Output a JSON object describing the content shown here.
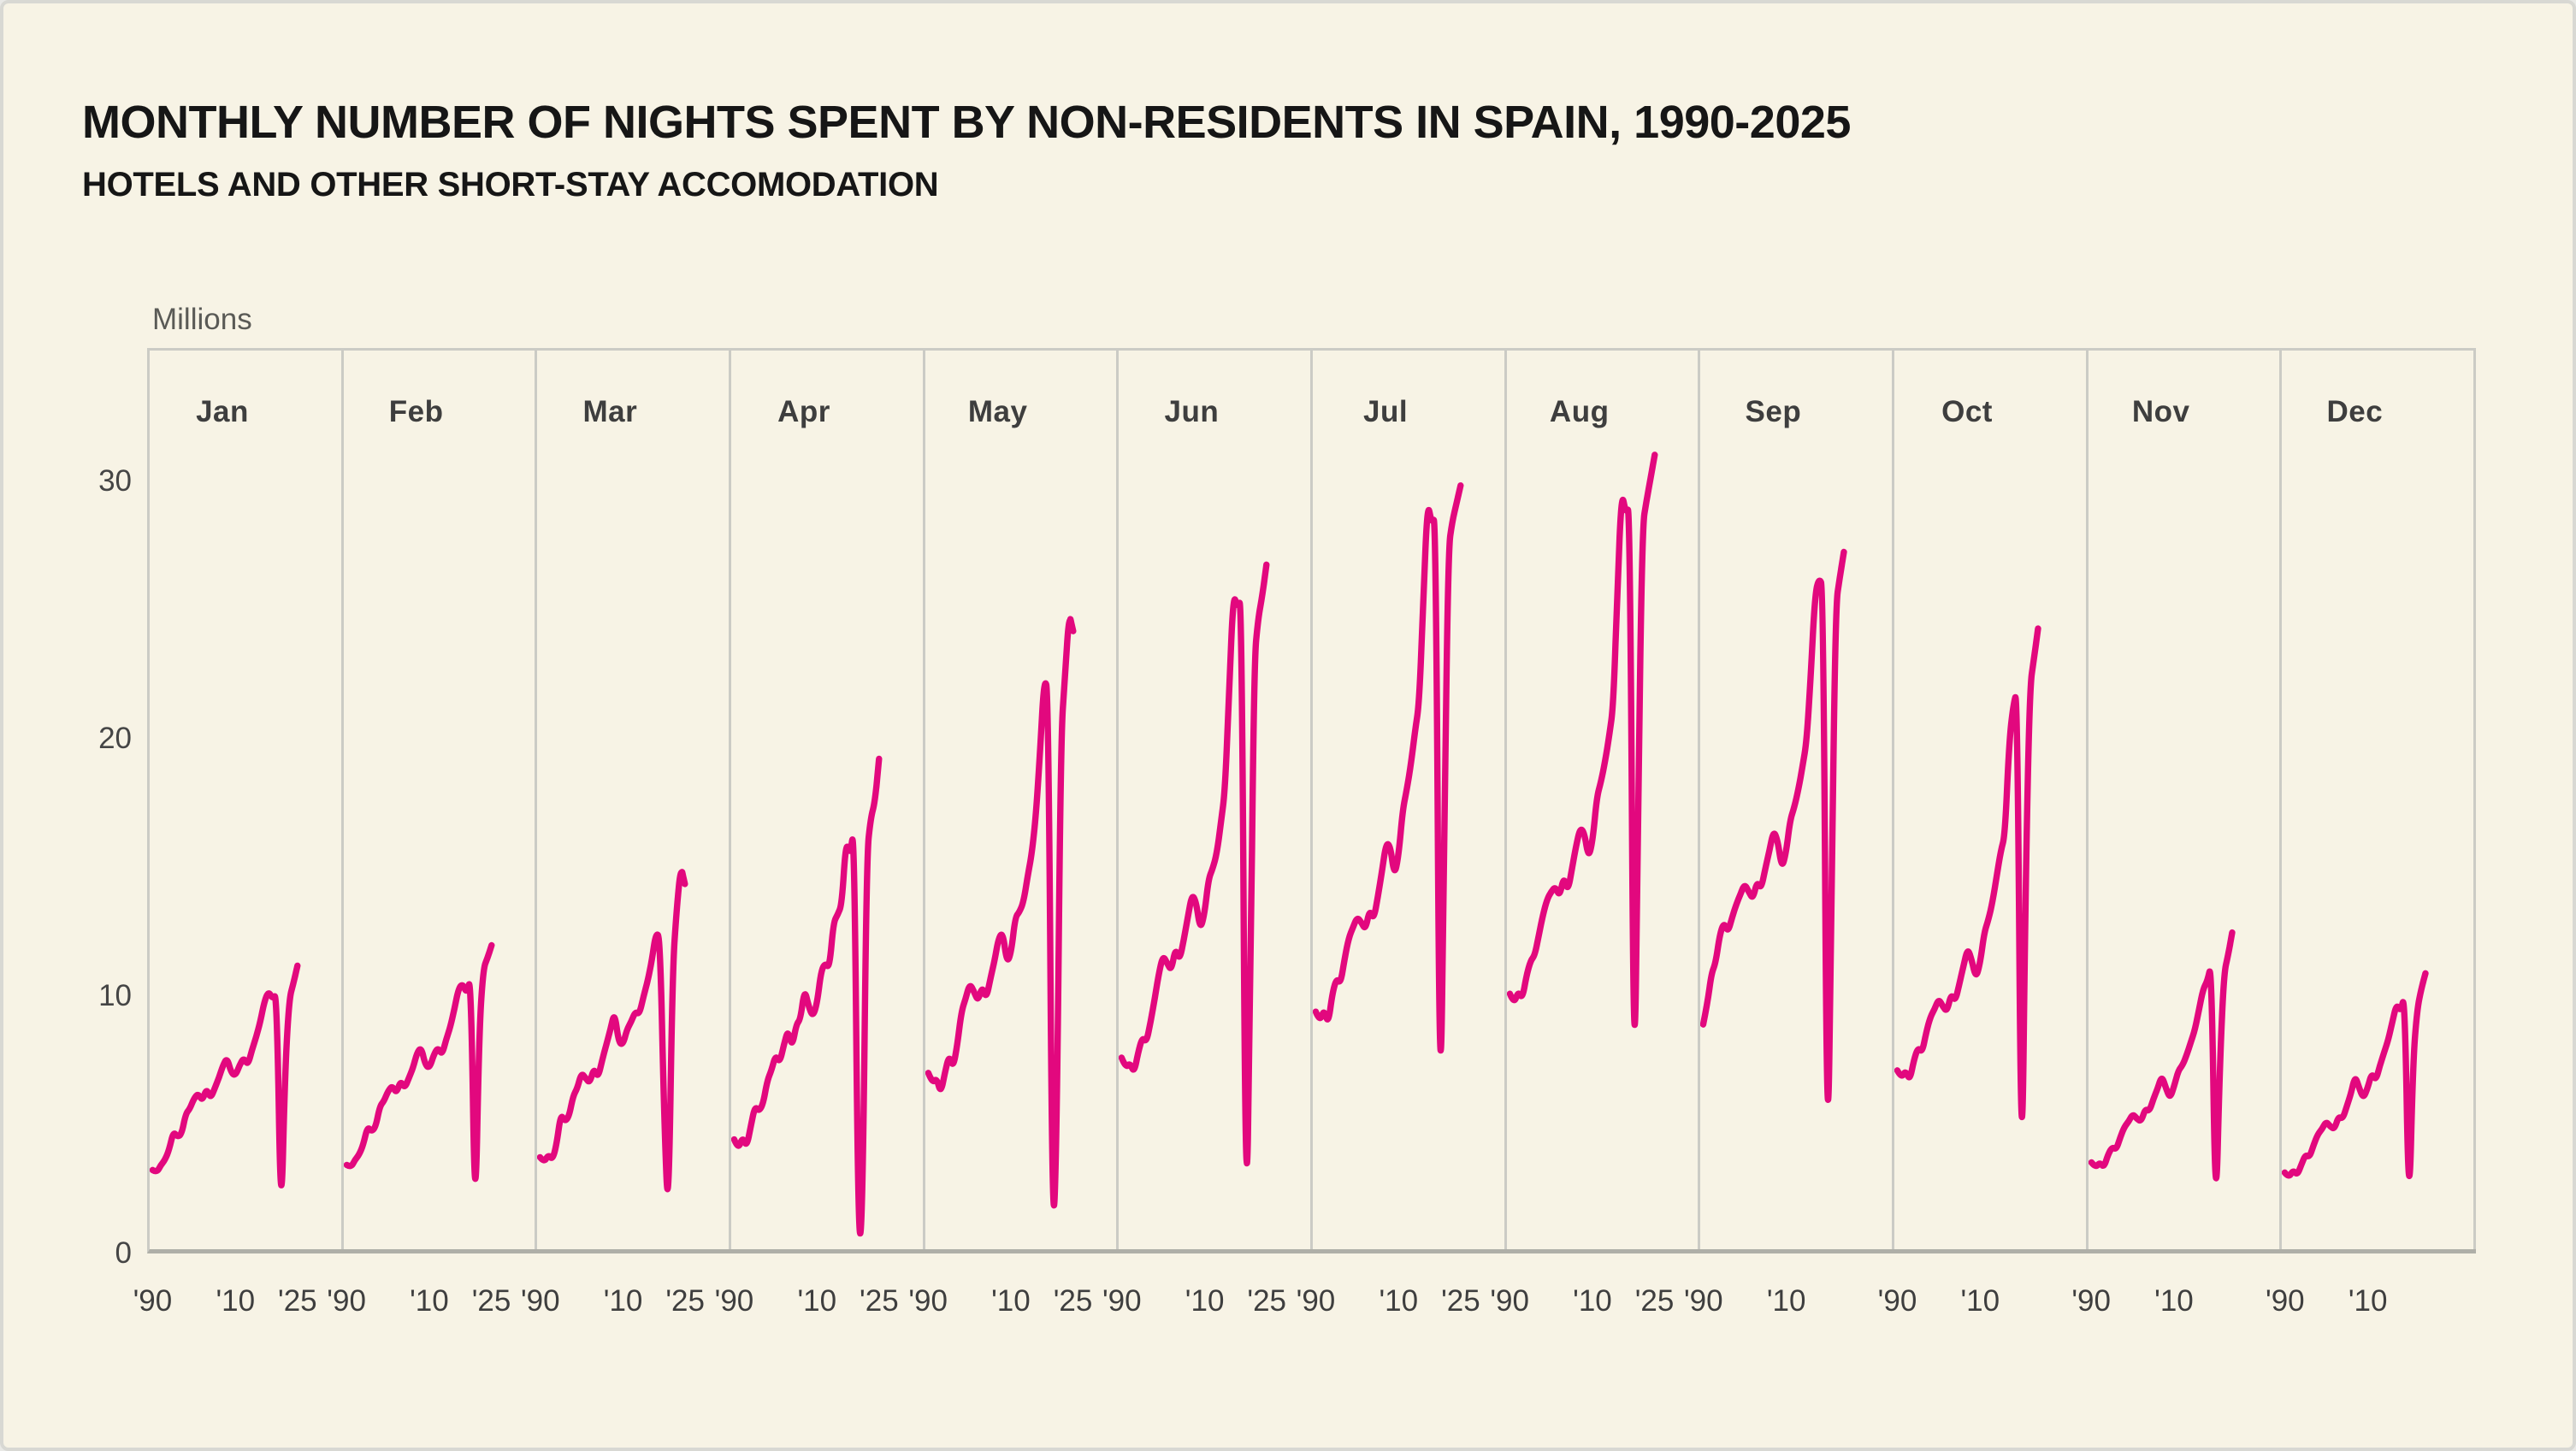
{
  "title": "MONTHLY NUMBER OF NIGHTS SPENT BY NON-RESIDENTS IN SPAIN, 1990-2025",
  "subtitle": "HOTELS AND OTHER SHORT-STAY ACCOMODATION",
  "colors": {
    "background": "#F7F3E5",
    "line": "#E2087E",
    "panel_border": "#CBCBC5",
    "axis_line": "#AFAFA8",
    "title_text": "#161616",
    "tick_text": "#3E3E3E",
    "unit_text": "#5A5A56"
  },
  "chart_data": {
    "type": "line",
    "title": "MONTHLY NUMBER OF NIGHTS SPENT BY NON-RESIDENTS IN SPAIN, 1990-2025",
    "subtitle": "HOTELS AND OTHER SHORT-STAY ACCOMODATION",
    "ylabel": "Millions",
    "unit_label": "Millions",
    "y_ticks": [
      0,
      10,
      20,
      30
    ],
    "ylim": [
      0,
      35.2
    ],
    "x_start_year": 1990,
    "grid": "panel borders only, no gridlines",
    "legend": "none",
    "panels": [
      {
        "month": "Jan",
        "start_year": 1990,
        "end_year": 2025,
        "x_ticks": [
          {
            "label": "'90",
            "year": 1990
          },
          {
            "label": "'10",
            "year": 2010
          },
          {
            "label": "'25",
            "year": 2025
          }
        ],
        "values": [
          3.1,
          3.0,
          3.3,
          3.5,
          3.9,
          4.6,
          4.4,
          4.5,
          5.3,
          5.5,
          5.9,
          6.1,
          5.8,
          6.3,
          5.9,
          6.3,
          6.7,
          7.2,
          7.5,
          6.9,
          6.8,
          7.2,
          7.5,
          7.2,
          7.8,
          8.3,
          8.9,
          9.7,
          10.1,
          9.8,
          10.0,
          0.6,
          7.0,
          9.8,
          10.4,
          11.1
        ]
      },
      {
        "month": "Feb",
        "start_year": 1990,
        "end_year": 2025,
        "x_ticks": [
          {
            "label": "'90",
            "year": 1990
          },
          {
            "label": "'10",
            "year": 2010
          },
          {
            "label": "'25",
            "year": 2025
          }
        ],
        "values": [
          3.3,
          3.2,
          3.5,
          3.7,
          4.1,
          4.8,
          4.6,
          4.8,
          5.6,
          5.8,
          6.2,
          6.4,
          6.1,
          6.6,
          6.3,
          6.7,
          7.1,
          7.7,
          7.9,
          7.2,
          7.1,
          7.6,
          7.9,
          7.6,
          8.2,
          8.7,
          9.4,
          10.2,
          10.4,
          10.0,
          10.7,
          0.5,
          8.6,
          11.0,
          11.4,
          11.9
        ]
      },
      {
        "month": "Mar",
        "start_year": 1990,
        "end_year": 2025,
        "x_ticks": [
          {
            "label": "'90",
            "year": 1990
          },
          {
            "label": "'10",
            "year": 2010
          },
          {
            "label": "'25",
            "year": 2025
          }
        ],
        "values": [
          3.6,
          3.4,
          3.7,
          3.5,
          4.1,
          5.3,
          5.0,
          5.2,
          6.0,
          6.3,
          6.9,
          6.7,
          6.5,
          7.1,
          6.7,
          7.4,
          8.0,
          8.6,
          9.3,
          8.1,
          8.0,
          8.6,
          8.9,
          9.3,
          9.2,
          9.9,
          10.5,
          11.3,
          12.4,
          12.2,
          5.0,
          0.9,
          10.9,
          13.3,
          15.0,
          14.3
        ]
      },
      {
        "month": "Apr",
        "start_year": 1990,
        "end_year": 2025,
        "x_ticks": [
          {
            "label": "'90",
            "year": 1990
          },
          {
            "label": "'10",
            "year": 2010
          },
          {
            "label": "'25",
            "year": 2025
          }
        ],
        "values": [
          4.3,
          3.9,
          4.4,
          4.0,
          4.8,
          5.6,
          5.4,
          5.7,
          6.6,
          7.0,
          7.6,
          7.3,
          8.0,
          8.6,
          7.9,
          8.8,
          9.0,
          10.2,
          9.5,
          9.1,
          9.6,
          10.9,
          11.2,
          11.0,
          12.8,
          13.1,
          13.5,
          16.0,
          15.4,
          16.6,
          0.1,
          1.2,
          15.4,
          16.9,
          17.5,
          19.2
        ]
      },
      {
        "month": "May",
        "start_year": 1990,
        "end_year": 2025,
        "x_ticks": [
          {
            "label": "'90",
            "year": 1990
          },
          {
            "label": "'10",
            "year": 2010
          },
          {
            "label": "'25",
            "year": 2025
          }
        ],
        "values": [
          6.9,
          6.5,
          6.7,
          6.1,
          6.9,
          7.6,
          7.1,
          8.0,
          9.3,
          9.8,
          10.4,
          10.1,
          9.7,
          10.3,
          9.8,
          10.6,
          11.3,
          12.2,
          12.4,
          11.2,
          11.6,
          13.0,
          13.2,
          13.6,
          14.6,
          15.5,
          17.0,
          19.5,
          22.4,
          21.8,
          0.1,
          3.9,
          20.0,
          22.4,
          24.9,
          24.2
        ]
      },
      {
        "month": "Jun",
        "start_year": 1990,
        "end_year": 2025,
        "x_ticks": [
          {
            "label": "'90",
            "year": 1990
          },
          {
            "label": "'10",
            "year": 2010
          },
          {
            "label": "'25",
            "year": 2025
          }
        ],
        "values": [
          7.5,
          7.1,
          7.3,
          6.9,
          7.7,
          8.3,
          8.1,
          8.9,
          9.8,
          10.8,
          11.5,
          11.2,
          10.9,
          11.8,
          11.3,
          12.1,
          13.0,
          13.9,
          13.6,
          12.5,
          13.1,
          14.5,
          14.9,
          15.5,
          16.7,
          18.0,
          22.0,
          25.7,
          25.1,
          25.5,
          0.3,
          8.4,
          23.0,
          24.7,
          25.6,
          26.8
        ]
      },
      {
        "month": "Jul",
        "start_year": 1990,
        "end_year": 2025,
        "x_ticks": [
          {
            "label": "'90",
            "year": 1990
          },
          {
            "label": "'10",
            "year": 2010
          },
          {
            "label": "'25",
            "year": 2025
          }
        ],
        "values": [
          9.3,
          8.9,
          9.4,
          8.8,
          10.0,
          10.6,
          10.4,
          11.4,
          12.2,
          12.6,
          13.0,
          12.8,
          12.5,
          13.3,
          12.9,
          13.8,
          14.8,
          15.9,
          15.8,
          14.6,
          15.4,
          17.2,
          18.0,
          19.0,
          20.3,
          21.4,
          25.5,
          29.3,
          28.4,
          28.7,
          3.8,
          15.5,
          27.4,
          28.5,
          29.2,
          29.9
        ]
      },
      {
        "month": "Aug",
        "start_year": 1990,
        "end_year": 2025,
        "x_ticks": [
          {
            "label": "'90",
            "year": 1990
          },
          {
            "label": "'10",
            "year": 2010
          },
          {
            "label": "'25",
            "year": 2025
          }
        ],
        "values": [
          10.0,
          9.6,
          10.1,
          9.8,
          10.7,
          11.3,
          11.5,
          12.3,
          13.1,
          13.7,
          14.0,
          14.2,
          13.8,
          14.6,
          14.0,
          14.9,
          15.8,
          16.5,
          16.3,
          15.3,
          16.0,
          17.7,
          18.3,
          19.1,
          20.1,
          21.3,
          26.0,
          29.7,
          28.8,
          29.1,
          4.4,
          18.0,
          28.3,
          29.3,
          30.2,
          31.1
        ]
      },
      {
        "month": "Sep",
        "start_year": 1990,
        "end_year": 2024,
        "x_ticks": [
          {
            "label": "'90",
            "year": 1990
          },
          {
            "label": "'10",
            "year": 2010
          }
        ],
        "values": [
          8.8,
          9.6,
          10.8,
          11.2,
          12.3,
          12.8,
          12.4,
          13.0,
          13.5,
          13.9,
          14.3,
          14.0,
          13.7,
          14.4,
          14.1,
          14.9,
          15.6,
          16.4,
          16.0,
          14.9,
          15.5,
          16.8,
          17.3,
          18.0,
          18.9,
          19.9,
          22.5,
          25.6,
          26.3,
          25.9,
          1.8,
          14.0,
          25.2,
          26.3,
          27.3
        ]
      },
      {
        "month": "Oct",
        "start_year": 1990,
        "end_year": 2024,
        "x_ticks": [
          {
            "label": "'90",
            "year": 1990
          },
          {
            "label": "'10",
            "year": 2010
          }
        ],
        "values": [
          7.0,
          6.7,
          7.0,
          6.6,
          7.4,
          7.9,
          7.7,
          8.5,
          9.1,
          9.4,
          9.8,
          9.5,
          9.3,
          10.0,
          9.7,
          10.4,
          11.1,
          11.8,
          11.3,
          10.6,
          11.2,
          12.4,
          12.9,
          13.6,
          14.6,
          15.6,
          16.2,
          19.8,
          21.3,
          21.9,
          1.1,
          14.5,
          22.0,
          23.1,
          24.3
        ]
      },
      {
        "month": "Nov",
        "start_year": 1990,
        "end_year": 2024,
        "x_ticks": [
          {
            "label": "'90",
            "year": 1990
          },
          {
            "label": "'10",
            "year": 2010
          }
        ],
        "values": [
          3.4,
          3.2,
          3.4,
          3.2,
          3.7,
          4.0,
          3.9,
          4.4,
          4.8,
          5.0,
          5.3,
          5.1,
          5.0,
          5.5,
          5.4,
          5.9,
          6.3,
          6.8,
          6.3,
          5.9,
          6.4,
          7.0,
          7.2,
          7.6,
          8.1,
          8.6,
          9.4,
          10.2,
          10.5,
          11.2,
          0.8,
          7.2,
          10.8,
          11.5,
          12.4
        ]
      },
      {
        "month": "Dec",
        "start_year": 1990,
        "end_year": 2024,
        "x_ticks": [
          {
            "label": "'90",
            "year": 1990
          },
          {
            "label": "'10",
            "year": 2010
          }
        ],
        "values": [
          3.0,
          2.8,
          3.1,
          2.9,
          3.3,
          3.7,
          3.6,
          4.1,
          4.5,
          4.7,
          5.0,
          4.8,
          4.7,
          5.2,
          5.1,
          5.6,
          6.1,
          6.8,
          6.3,
          5.9,
          6.3,
          6.9,
          6.6,
          7.2,
          7.7,
          8.2,
          8.9,
          9.6,
          9.3,
          10.0,
          1.0,
          7.4,
          9.4,
          10.2,
          10.8
        ]
      }
    ]
  }
}
